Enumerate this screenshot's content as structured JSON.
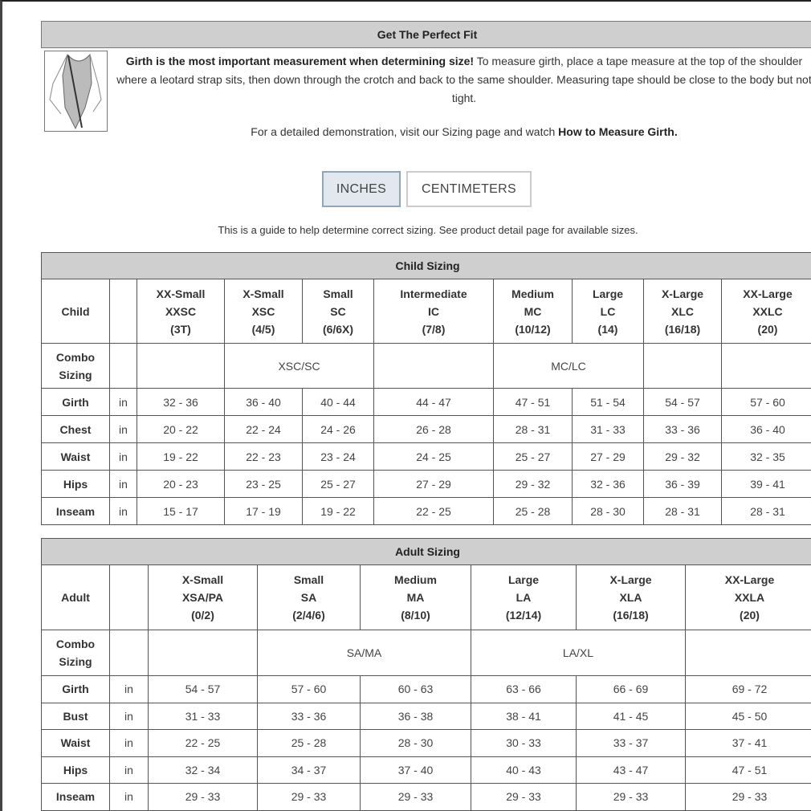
{
  "fit": {
    "title": "Get The Perfect Fit",
    "intro_bold": "Girth is the most important measurement when determining size!",
    "intro_rest": " To measure girth, place a tape measure at the top of the shoulder where a leotard strap sits, then down through the crotch and back to the same shoulder. Measuring tape should be close to the body but not tight.",
    "demo_text": "For a detailed demonstration, visit our Sizing page and watch ",
    "demo_link": "How to Measure Girth."
  },
  "units": {
    "inches": "INCHES",
    "centimeters": "CENTIMETERS",
    "selected": "INCHES"
  },
  "guide": "This is a guide to help determine correct sizing. See product detail page for available sizes.",
  "child": {
    "title": "Child Sizing",
    "label": "Child",
    "combo_label": [
      "Combo",
      "Sizing"
    ],
    "sizes": [
      [
        "XX-Small",
        "XXSC",
        "(3T)"
      ],
      [
        "X-Small",
        "XSC",
        "(4/5)"
      ],
      [
        "Small",
        "SC",
        "(6/6X)"
      ],
      [
        "Intermediate",
        "IC",
        "(7/8)"
      ],
      [
        "Medium",
        "MC",
        "(10/12)"
      ],
      [
        "Large",
        "LC",
        "(14)"
      ],
      [
        "X-Large",
        "XLC",
        "(16/18)"
      ],
      [
        "XX-Large",
        "XXLC",
        "(20)"
      ]
    ],
    "combo": [
      "XSC/SC",
      "MC/LC"
    ],
    "rows": [
      {
        "name": "Girth",
        "unit": "in",
        "values": [
          "32 - 36",
          "36 - 40",
          "40 - 44",
          "44 - 47",
          "47 - 51",
          "51 - 54",
          "54 - 57",
          "57 - 60"
        ]
      },
      {
        "name": "Chest",
        "unit": "in",
        "values": [
          "20 - 22",
          "22 - 24",
          "24 - 26",
          "26 - 28",
          "28 - 31",
          "31 - 33",
          "33 - 36",
          "36 - 40"
        ]
      },
      {
        "name": "Waist",
        "unit": "in",
        "values": [
          "19 - 22",
          "22 - 23",
          "23 - 24",
          "24 - 25",
          "25 - 27",
          "27 - 29",
          "29 - 32",
          "32 - 35"
        ]
      },
      {
        "name": "Hips",
        "unit": "in",
        "values": [
          "20 - 23",
          "23 - 25",
          "25 - 27",
          "27 - 29",
          "29 - 32",
          "32 - 36",
          "36 - 39",
          "39 - 41"
        ]
      },
      {
        "name": "Inseam",
        "unit": "in",
        "values": [
          "15 - 17",
          "17 - 19",
          "19 - 22",
          "22 - 25",
          "25 - 28",
          "28 - 30",
          "28 - 31",
          "28 - 31"
        ]
      }
    ]
  },
  "adult": {
    "title": "Adult Sizing",
    "label": "Adult",
    "combo_label": [
      "Combo",
      "Sizing"
    ],
    "sizes": [
      [
        "X-Small",
        "XSA/PA",
        "(0/2)"
      ],
      [
        "Small",
        "SA",
        "(2/4/6)"
      ],
      [
        "Medium",
        "MA",
        "(8/10)"
      ],
      [
        "Large",
        "LA",
        "(12/14)"
      ],
      [
        "X-Large",
        "XLA",
        "(16/18)"
      ],
      [
        "XX-Large",
        "XXLA",
        "(20)"
      ]
    ],
    "combo": [
      "SA/MA",
      "LA/XL"
    ],
    "rows": [
      {
        "name": "Girth",
        "unit": "in",
        "values": [
          "54 - 57",
          "57 - 60",
          "60 - 63",
          "63 - 66",
          "66 - 69",
          "69 - 72"
        ]
      },
      {
        "name": "Bust",
        "unit": "in",
        "values": [
          "31 - 33",
          "33 - 36",
          "36 - 38",
          "38 - 41",
          "41 - 45",
          "45 - 50"
        ]
      },
      {
        "name": "Waist",
        "unit": "in",
        "values": [
          "22 - 25",
          "25 - 28",
          "28 - 30",
          "30 - 33",
          "33 - 37",
          "37 - 41"
        ]
      },
      {
        "name": "Hips",
        "unit": "in",
        "values": [
          "32 - 34",
          "34 - 37",
          "37 - 40",
          "40 - 43",
          "43 - 47",
          "47 - 51"
        ]
      },
      {
        "name": "Inseam",
        "unit": "in",
        "values": [
          "29 - 33",
          "29 - 33",
          "29 - 33",
          "29 - 33",
          "29 - 33",
          "29 - 33"
        ]
      }
    ]
  }
}
